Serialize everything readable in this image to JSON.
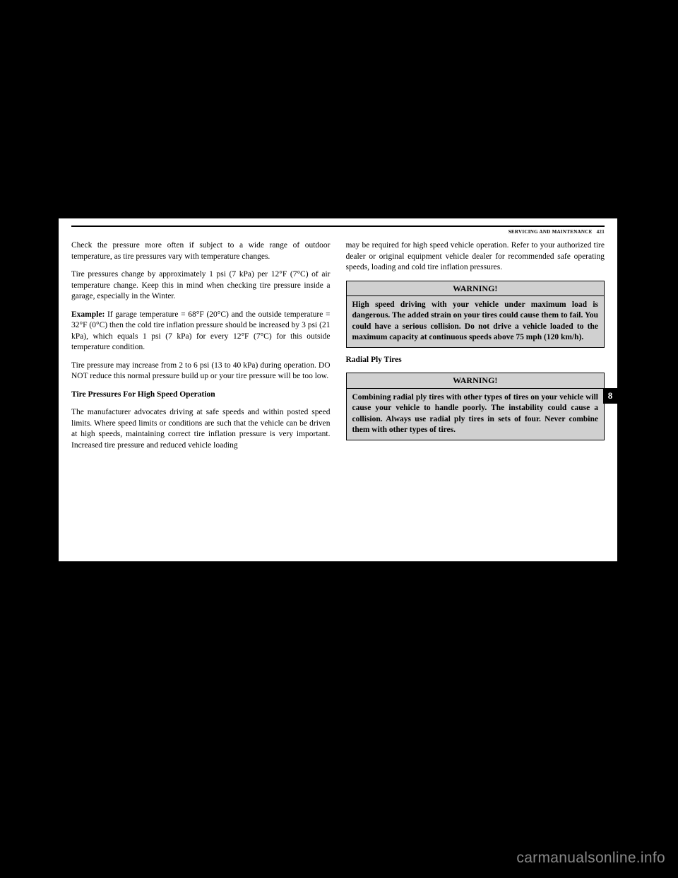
{
  "header": {
    "section": "SERVICING AND MAINTENANCE",
    "page": "421"
  },
  "tab": "8",
  "left": {
    "p1": "Check the pressure more often if subject to a wide range of outdoor temperature, as tire pressures vary with temperature changes.",
    "p2": "Tire pressures change by approximately 1 psi (7 kPa) per 12°F (7°C) of air temperature change. Keep this in mind when checking tire pressure inside a garage, especially in the Winter.",
    "p3a": "Example:",
    "p3b": " If garage temperature = 68°F (20°C) and the outside temperature = 32°F (0°C) then the cold tire inflation pressure should be increased by 3 psi (21 kPa), which equals 1 psi (7 kPa) for every 12°F (7°C) for this outside temperature condition.",
    "p4": "Tire pressure may increase from 2 to 6 psi (13 to 40 kPa) during operation. DO NOT reduce this normal pressure build up or your tire pressure will be too low.",
    "h1": "Tire Pressures For High Speed Operation",
    "p5": "The manufacturer advocates driving at safe speeds and within posted speed limits. Where speed limits or conditions are such that the vehicle can be driven at high speeds, maintaining correct tire inflation pressure is very important. Increased tire pressure and reduced vehicle loading"
  },
  "right": {
    "p1": "may be required for high speed vehicle operation. Refer to your authorized tire dealer or original equipment vehicle dealer for recommended safe operating speeds, loading and cold tire inflation pressures.",
    "w1_title": "WARNING!",
    "w1_body": "High speed driving with your vehicle under maximum load is dangerous. The added strain on your tires could cause them to fail. You could have a serious collision. Do not drive a vehicle loaded to the maximum capacity at continuous speeds above 75 mph (120 km/h).",
    "h1": "Radial Ply Tires",
    "w2_title": "WARNING!",
    "w2_body": "Combining radial ply tires with other types of tires on your vehicle will cause your vehicle to handle poorly. The instability could cause a collision. Always use radial ply tires in sets of four. Never combine them with other types of tires."
  },
  "watermark": "carmanualsonline.info"
}
